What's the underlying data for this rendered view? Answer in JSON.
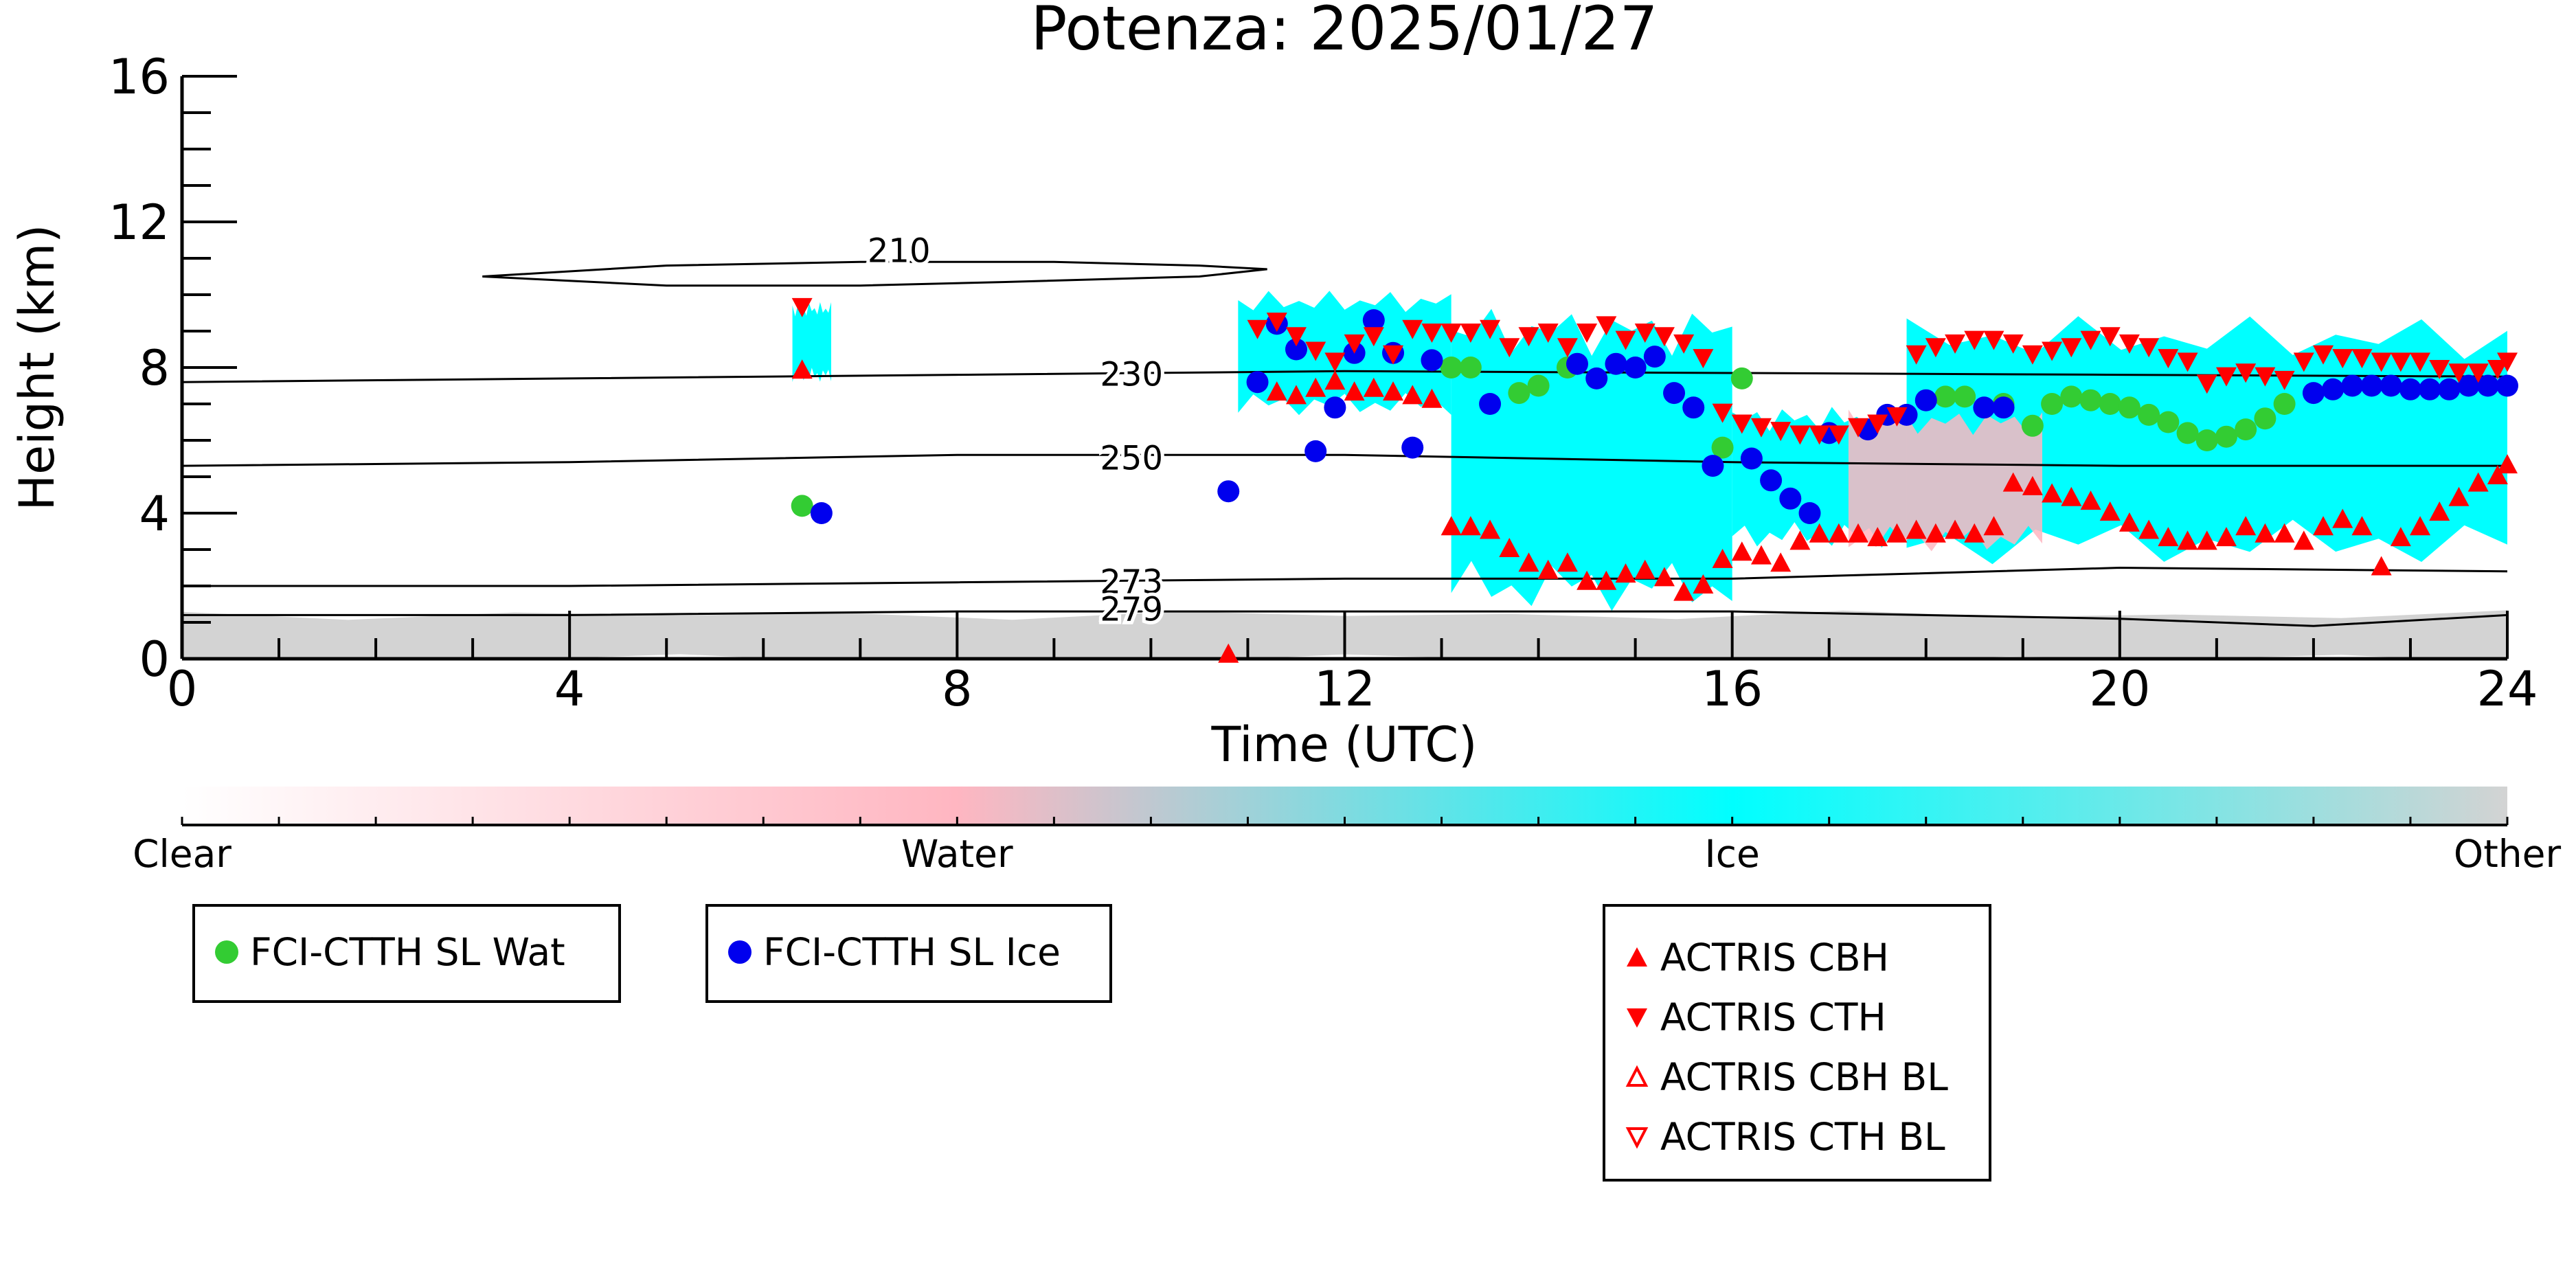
{
  "chart_data": {
    "type": "scatter",
    "title": "Potenza: 2025/01/27",
    "xlabel": "Time (UTC)",
    "ylabel": "Height (km)",
    "xlim": [
      0,
      24
    ],
    "ylim": [
      0,
      16
    ],
    "xticks": [
      "0",
      "4",
      "8",
      "12",
      "16",
      "20",
      "24"
    ],
    "yticks": [
      "0",
      "4",
      "8",
      "12",
      "16"
    ],
    "contour_labels": [
      "210",
      "230",
      "250",
      "273",
      "279"
    ],
    "colorbar": {
      "labels": [
        "Clear",
        "Water",
        "Ice",
        "Other"
      ],
      "colors": [
        "#ffffff",
        "#ffb6c1",
        "#00ffff",
        "#d3d3d3"
      ]
    },
    "series": [
      {
        "name": "FCI-CTTH SL Wat",
        "color": "#33cc33",
        "marker": "circle",
        "x": [
          6.4,
          13.1,
          13.3,
          13.8,
          14.0,
          14.3,
          15.9,
          16.1,
          18.2,
          18.4,
          18.8,
          19.1,
          19.3,
          19.5,
          19.7,
          19.9,
          20.1,
          20.3,
          20.5,
          20.7,
          20.9,
          21.1,
          21.3,
          21.5,
          21.7
        ],
        "y": [
          4.2,
          8.0,
          8.0,
          7.3,
          7.5,
          8.0,
          5.8,
          7.7,
          7.2,
          7.2,
          7.0,
          6.4,
          7.0,
          7.2,
          7.1,
          7.0,
          6.9,
          6.7,
          6.5,
          6.2,
          6.0,
          6.1,
          6.3,
          6.6,
          7.0
        ]
      },
      {
        "name": "FCI-CTTH SL Ice",
        "color": "#0000ee",
        "marker": "circle",
        "x": [
          6.6,
          10.8,
          11.1,
          11.3,
          11.5,
          11.7,
          11.9,
          12.1,
          12.3,
          12.5,
          12.7,
          12.9,
          13.5,
          14.4,
          14.6,
          14.8,
          15.0,
          15.2,
          15.4,
          15.6,
          15.8,
          16.2,
          16.4,
          16.6,
          16.8,
          17.0,
          17.4,
          17.6,
          17.8,
          18.0,
          18.6,
          18.8,
          22.0,
          22.2,
          22.4,
          22.6,
          22.8,
          23.0,
          23.2,
          23.4,
          23.6,
          23.8,
          24.0
        ],
        "y": [
          4.0,
          4.6,
          7.6,
          9.2,
          8.5,
          5.7,
          6.9,
          8.4,
          9.3,
          8.4,
          5.8,
          8.2,
          7.0,
          8.1,
          7.7,
          8.1,
          8.0,
          8.3,
          7.3,
          6.9,
          5.3,
          5.5,
          4.9,
          4.4,
          4.0,
          6.2,
          6.3,
          6.7,
          6.7,
          7.1,
          6.9,
          6.9,
          7.3,
          7.4,
          7.5,
          7.5,
          7.5,
          7.4,
          7.4,
          7.4,
          7.5,
          7.5,
          7.5
        ]
      },
      {
        "name": "ACTRIS CBH",
        "color": "#ff0000",
        "marker": "triangle-up",
        "x": [
          6.4,
          10.8,
          11.3,
          11.5,
          11.7,
          11.9,
          12.1,
          12.3,
          12.5,
          12.7,
          12.9,
          13.1,
          13.3,
          13.5,
          13.7,
          13.9,
          14.1,
          14.3,
          14.5,
          14.7,
          14.9,
          15.1,
          15.3,
          15.5,
          15.7,
          15.9,
          16.1,
          16.3,
          16.5,
          16.7,
          16.9,
          17.1,
          17.3,
          17.5,
          17.7,
          17.9,
          18.1,
          18.3,
          18.5,
          18.7,
          18.9,
          19.1,
          19.3,
          19.5,
          19.7,
          19.9,
          20.1,
          20.3,
          20.5,
          20.7,
          20.9,
          21.1,
          21.3,
          21.5,
          21.7,
          21.9,
          22.1,
          22.3,
          22.5,
          22.7,
          22.9,
          23.1,
          23.3,
          23.5,
          23.7,
          23.9,
          24.0
        ],
        "y": [
          7.9,
          0.1,
          7.3,
          7.2,
          7.4,
          7.6,
          7.3,
          7.4,
          7.3,
          7.2,
          7.1,
          3.6,
          3.6,
          3.5,
          3.0,
          2.6,
          2.4,
          2.6,
          2.1,
          2.1,
          2.3,
          2.4,
          2.2,
          1.8,
          2.0,
          2.7,
          2.9,
          2.8,
          2.6,
          3.2,
          3.4,
          3.4,
          3.4,
          3.3,
          3.4,
          3.5,
          3.4,
          3.5,
          3.4,
          3.6,
          4.8,
          4.7,
          4.5,
          4.4,
          4.3,
          4.0,
          3.7,
          3.5,
          3.3,
          3.2,
          3.2,
          3.3,
          3.6,
          3.4,
          3.4,
          3.2,
          3.6,
          3.8,
          3.6,
          2.5,
          3.3,
          3.6,
          4.0,
          4.4,
          4.8,
          5.0,
          5.3
        ]
      },
      {
        "name": "ACTRIS CTH",
        "color": "#ff0000",
        "marker": "triangle-down",
        "x": [
          6.4,
          11.1,
          11.3,
          11.5,
          11.7,
          11.9,
          12.1,
          12.3,
          12.5,
          12.7,
          12.9,
          13.1,
          13.3,
          13.5,
          13.7,
          13.9,
          14.1,
          14.3,
          14.5,
          14.7,
          14.9,
          15.1,
          15.3,
          15.5,
          15.7,
          15.9,
          16.1,
          16.3,
          16.5,
          16.7,
          16.9,
          17.1,
          17.3,
          17.5,
          17.7,
          17.9,
          18.1,
          18.3,
          18.5,
          18.7,
          18.9,
          19.1,
          19.3,
          19.5,
          19.7,
          19.9,
          20.1,
          20.3,
          20.5,
          20.7,
          20.9,
          21.1,
          21.3,
          21.5,
          21.7,
          21.9,
          22.1,
          22.3,
          22.5,
          22.7,
          22.9,
          23.1,
          23.3,
          23.5,
          23.7,
          23.9,
          24.0
        ],
        "y": [
          9.7,
          9.1,
          9.3,
          8.9,
          8.5,
          8.2,
          8.7,
          8.9,
          8.4,
          9.1,
          9.0,
          9.0,
          9.0,
          9.1,
          8.6,
          8.9,
          9.0,
          8.6,
          9.0,
          9.2,
          8.8,
          9.0,
          8.9,
          8.7,
          8.3,
          6.8,
          6.5,
          6.4,
          6.3,
          6.2,
          6.2,
          6.2,
          6.4,
          6.5,
          6.7,
          8.4,
          8.6,
          8.7,
          8.8,
          8.8,
          8.7,
          8.4,
          8.5,
          8.6,
          8.8,
          8.9,
          8.7,
          8.6,
          8.3,
          8.2,
          7.6,
          7.8,
          7.9,
          7.8,
          7.7,
          8.2,
          8.4,
          8.3,
          8.3,
          8.2,
          8.2,
          8.2,
          8.0,
          7.9,
          7.9,
          8.0,
          8.2
        ]
      },
      {
        "name": "ACTRIS CBH BL",
        "color": "#ff0000",
        "marker": "triangle-up-open",
        "x": [],
        "y": []
      },
      {
        "name": "ACTRIS CTH BL",
        "color": "#ff0000",
        "marker": "triangle-down-open",
        "x": [],
        "y": []
      }
    ],
    "classification_regions": [
      {
        "class": "Ice",
        "x": [
          6.3,
          6.7
        ],
        "y": [
          7.8,
          9.6
        ]
      },
      {
        "class": "Ice",
        "x": [
          10.9,
          13.1
        ],
        "y": [
          7.0,
          9.8
        ]
      },
      {
        "class": "Ice",
        "x": [
          13.1,
          16.0
        ],
        "y": [
          2.0,
          9.0
        ]
      },
      {
        "class": "Ice",
        "x": [
          16.0,
          17.8
        ],
        "y": [
          3.4,
          6.6
        ]
      },
      {
        "class": "Ice",
        "x": [
          17.8,
          24.0
        ],
        "y": [
          3.2,
          8.8
        ]
      },
      {
        "class": "Water",
        "x": [
          17.2,
          19.2
        ],
        "y": [
          3.3,
          6.5
        ]
      },
      {
        "class": "Other",
        "x": [
          0,
          24
        ],
        "y": [
          0,
          1.2
        ]
      }
    ],
    "grid": false,
    "legend": [
      "bottom-left",
      "bottom-left",
      "bottom-center"
    ]
  }
}
